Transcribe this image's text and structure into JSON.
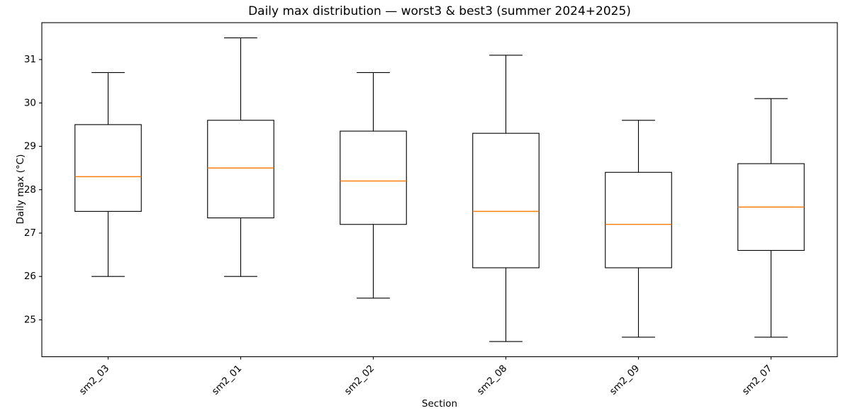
{
  "chart_data": {
    "type": "boxplot",
    "title": "Daily max distribution — worst3 & best3 (summer 2024+2025)",
    "xlabel": "Section",
    "ylabel": "Daily max (°C)",
    "categories": [
      "sm2_03",
      "sm2_01",
      "sm2_02",
      "sm2_08",
      "sm2_09",
      "sm2_07"
    ],
    "series": [
      {
        "name": "sm2_03",
        "whisker_low": 26.0,
        "q1": 27.5,
        "median": 28.3,
        "q3": 29.5,
        "whisker_high": 30.7
      },
      {
        "name": "sm2_01",
        "whisker_low": 26.0,
        "q1": 27.35,
        "median": 28.5,
        "q3": 29.6,
        "whisker_high": 31.5
      },
      {
        "name": "sm2_02",
        "whisker_low": 25.5,
        "q1": 27.2,
        "median": 28.2,
        "q3": 29.35,
        "whisker_high": 30.7
      },
      {
        "name": "sm2_08",
        "whisker_low": 24.5,
        "q1": 26.2,
        "median": 27.5,
        "q3": 29.3,
        "whisker_high": 31.1
      },
      {
        "name": "sm2_09",
        "whisker_low": 24.6,
        "q1": 26.2,
        "median": 27.2,
        "q3": 28.4,
        "whisker_high": 29.6
      },
      {
        "name": "sm2_07",
        "whisker_low": 24.6,
        "q1": 26.6,
        "median": 27.6,
        "q3": 28.6,
        "whisker_high": 30.1
      }
    ],
    "ylim": [
      24.15,
      31.85
    ],
    "yticks": [
      25,
      26,
      27,
      28,
      29,
      30,
      31
    ],
    "grid": false,
    "legend": "none",
    "colors": {
      "box_line": "#000000",
      "median": "#ff7f0e",
      "text": "#000000",
      "background": "#ffffff"
    }
  }
}
